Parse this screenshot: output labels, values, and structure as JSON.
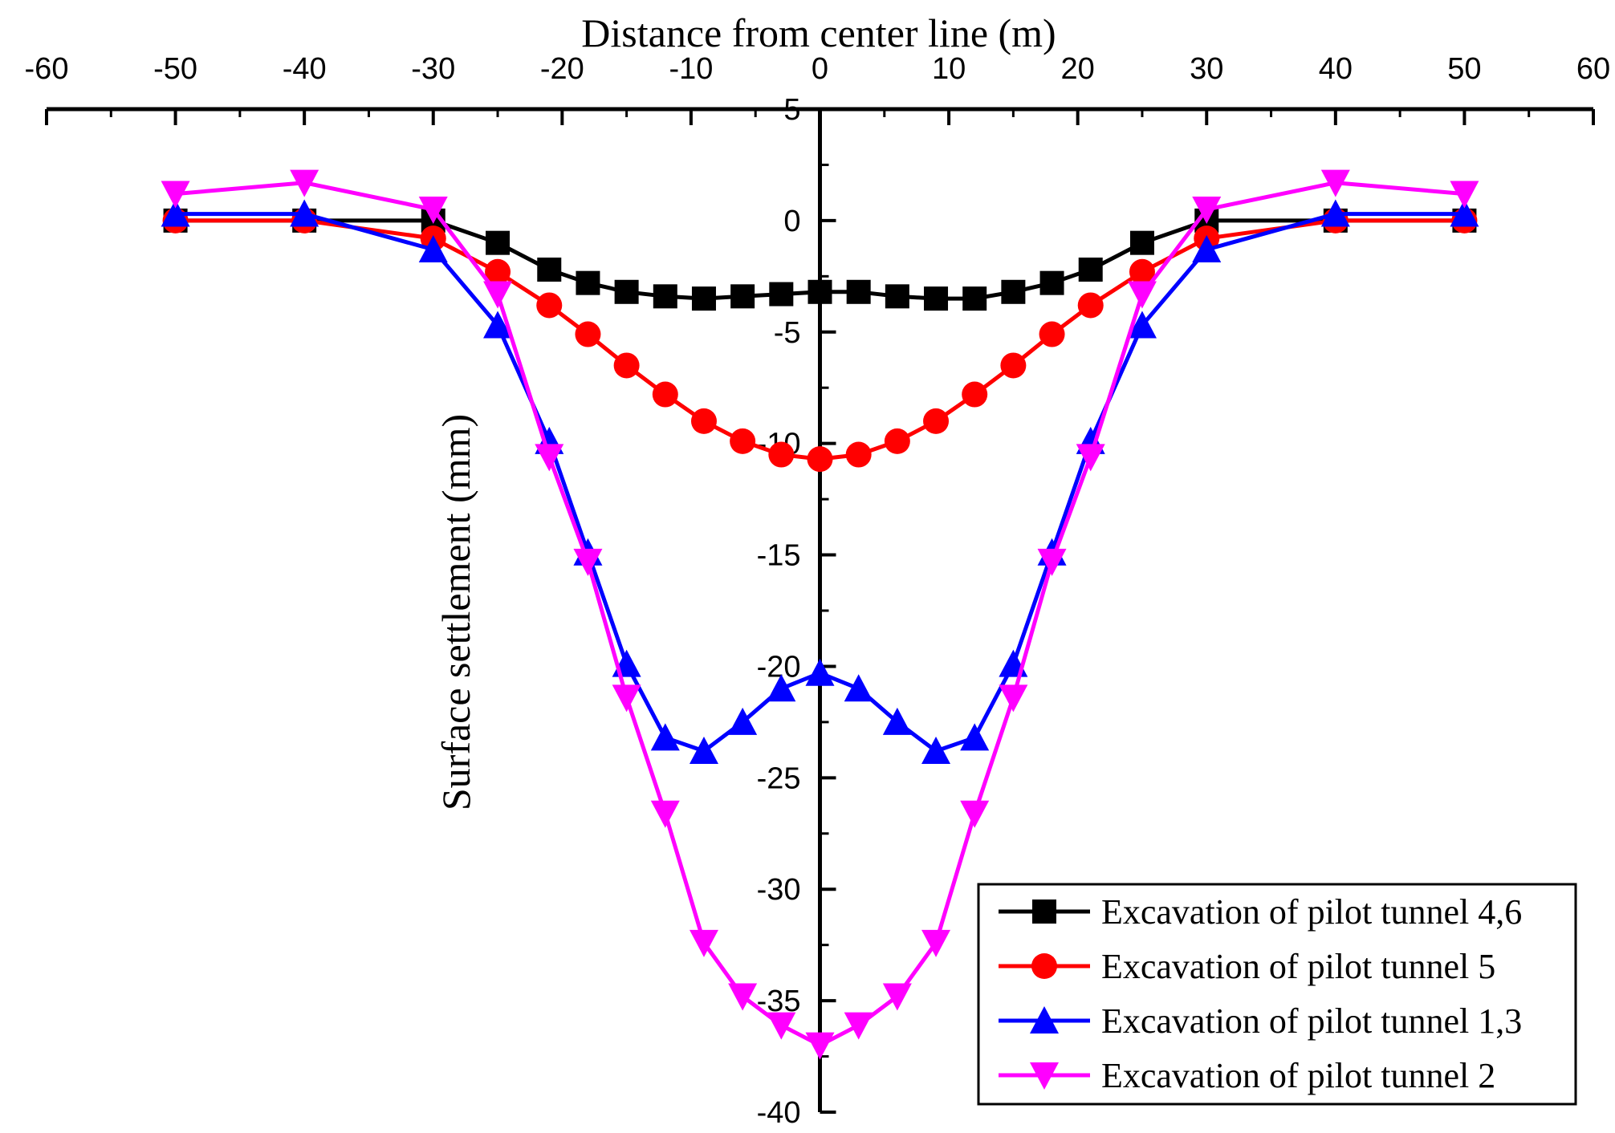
{
  "chart_data": {
    "type": "line",
    "xlabel": "Distance from center line (m)",
    "ylabel": "Surface settlement (mm)",
    "xlim": [
      -60,
      60
    ],
    "ylim": [
      -40,
      5
    ],
    "x_ticks": [
      -60,
      -50,
      -40,
      -30,
      -20,
      -10,
      0,
      10,
      20,
      30,
      40,
      50,
      60
    ],
    "y_ticks": [
      5,
      0,
      -5,
      -10,
      -15,
      -20,
      -25,
      -30,
      -35,
      -40
    ],
    "x_axis_position": "top",
    "y_axis_position": "center",
    "legend_position": "bottom-right",
    "grid": false,
    "series": [
      {
        "name": "Excavation of pilot tunnel 4,6",
        "color": "#000000",
        "marker": "square",
        "x": [
          -50,
          -40,
          -30,
          -25,
          -21,
          -18,
          -15,
          -12,
          -9,
          -6,
          -3,
          0,
          3,
          6,
          9,
          12,
          15,
          18,
          21,
          25,
          30,
          40,
          50
        ],
        "y": [
          0,
          0,
          0,
          -1,
          -2.2,
          -2.8,
          -3.2,
          -3.4,
          -3.5,
          -3.4,
          -3.3,
          -3.2,
          -3.2,
          -3.4,
          -3.5,
          -3.5,
          -3.2,
          -2.8,
          -2.2,
          -1,
          0,
          0,
          0
        ]
      },
      {
        "name": "Excavation of pilot tunnel 5",
        "color": "#ff0000",
        "marker": "circle",
        "x": [
          -50,
          -40,
          -30,
          -25,
          -21,
          -18,
          -15,
          -12,
          -9,
          -6,
          -3,
          0,
          3,
          6,
          9,
          12,
          15,
          18,
          21,
          25,
          30,
          40,
          50
        ],
        "y": [
          0,
          0,
          -0.8,
          -2.3,
          -3.8,
          -5.1,
          -6.5,
          -7.8,
          -9,
          -9.9,
          -10.5,
          -10.7,
          -10.5,
          -9.9,
          -9,
          -7.8,
          -6.5,
          -5.1,
          -3.8,
          -2.3,
          -0.8,
          0,
          0
        ]
      },
      {
        "name": "Excavation of pilot tunnel 1,3",
        "color": "#0000ff",
        "marker": "triangle-up",
        "x": [
          -50,
          -40,
          -30,
          -25,
          -21,
          -18,
          -15,
          -12,
          -9,
          -6,
          -3,
          0,
          3,
          6,
          9,
          12,
          15,
          18,
          21,
          25,
          30,
          40,
          50
        ],
        "y": [
          0.3,
          0.3,
          -1.3,
          -4.7,
          -9.9,
          -14.9,
          -19.9,
          -23.2,
          -23.8,
          -22.5,
          -21,
          -20.3,
          -21,
          -22.5,
          -23.8,
          -23.2,
          -19.9,
          -14.9,
          -9.9,
          -4.7,
          -1.3,
          0.3,
          0.3
        ]
      },
      {
        "name": "Excavation of pilot tunnel 2",
        "color": "#ff00ff",
        "marker": "triangle-down",
        "x": [
          -50,
          -40,
          -30,
          -25,
          -21,
          -18,
          -15,
          -12,
          -9,
          -6,
          -3,
          0,
          3,
          6,
          9,
          12,
          15,
          18,
          21,
          25,
          30,
          40,
          50
        ],
        "y": [
          1.2,
          1.7,
          0.5,
          -3.3,
          -10.6,
          -15.3,
          -21.4,
          -26.6,
          -32.4,
          -34.8,
          -36.1,
          -37,
          -36.1,
          -34.8,
          -32.4,
          -26.6,
          -21.4,
          -15.3,
          -10.6,
          -3.3,
          0.5,
          1.7,
          1.2
        ]
      }
    ]
  }
}
